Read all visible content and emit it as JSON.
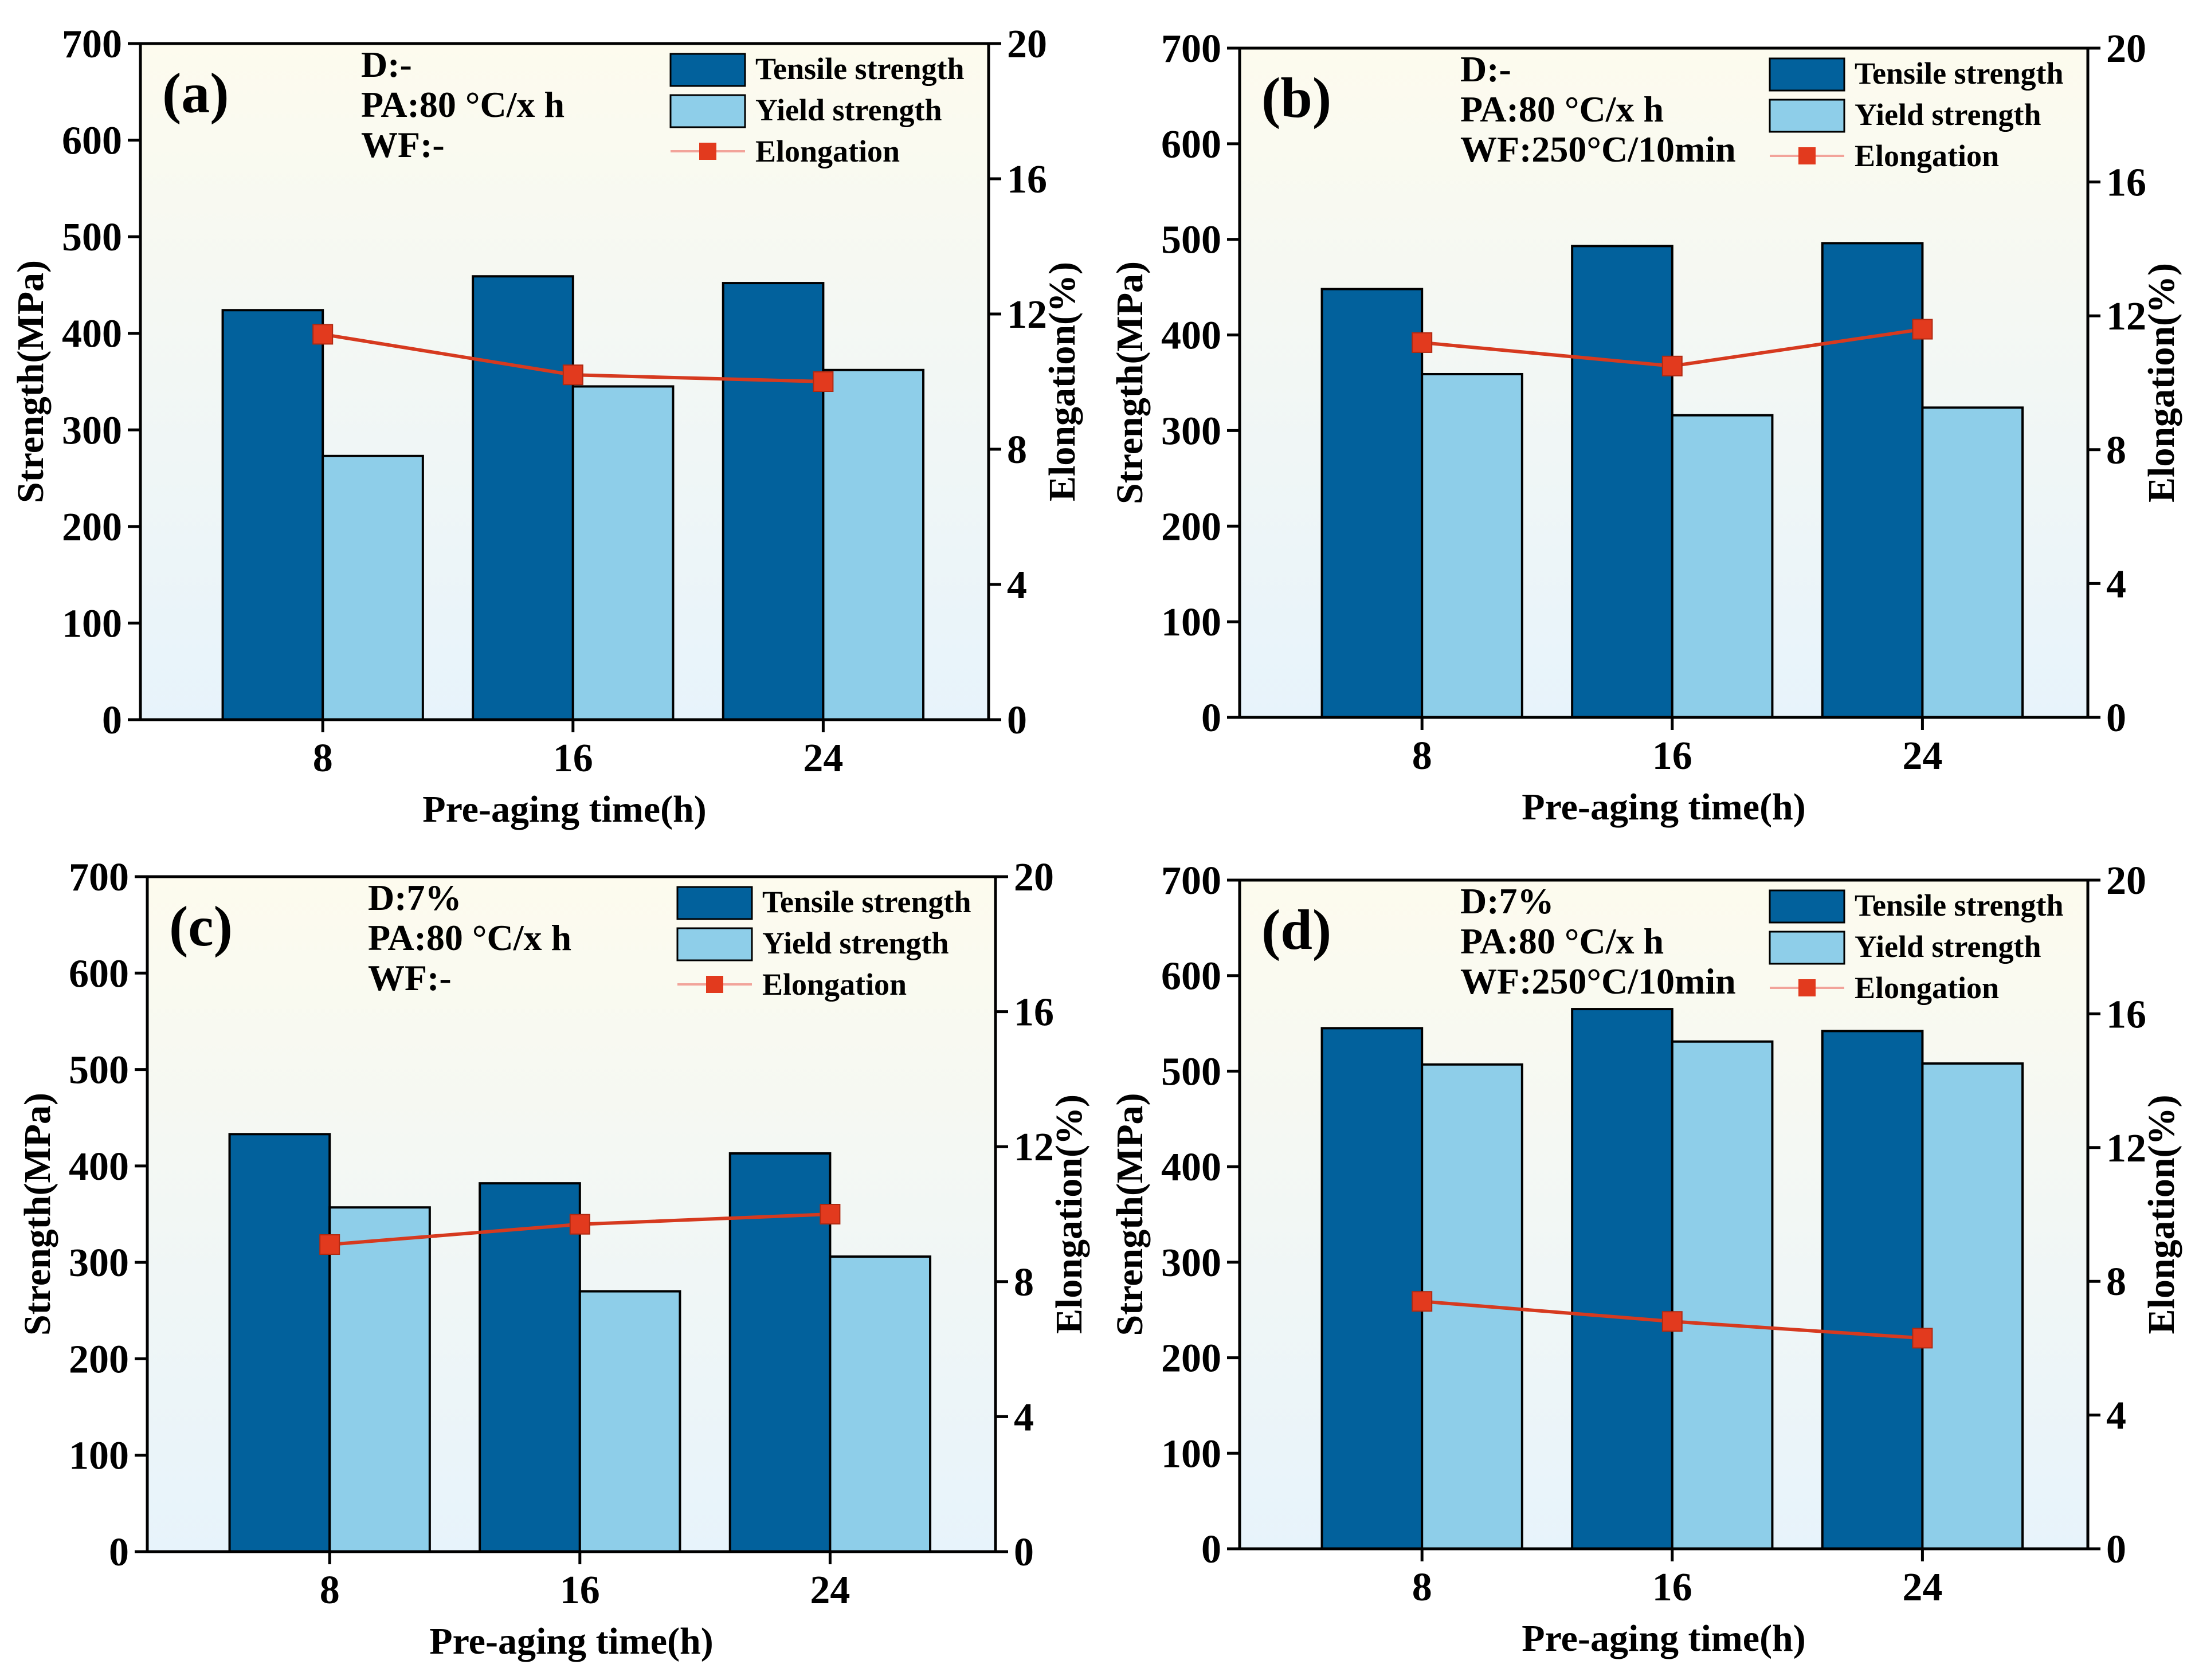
{
  "chart_data": [
    {
      "panel": "(a)",
      "type": "bar",
      "conditions": [
        "D:-",
        "PA:80 °C/x h",
        "WF:-"
      ],
      "xlabel": "Pre-aging time(h)",
      "ylabel": "Strength(MPa)",
      "y2label": "Elongation(%)",
      "categories": [
        "8",
        "16",
        "24"
      ],
      "ylim": [
        0,
        700
      ],
      "y2lim": [
        0,
        20
      ],
      "yticks": [
        "0",
        "100",
        "200",
        "300",
        "400",
        "500",
        "600",
        "700"
      ],
      "y2ticks": [
        "0",
        "4",
        "8",
        "12",
        "16",
        "20"
      ],
      "series": [
        {
          "name": "Tensile strength",
          "kind": "bar",
          "axis": "left",
          "values": [
            424,
            459,
            452
          ]
        },
        {
          "name": "Yield strength",
          "kind": "bar",
          "axis": "left",
          "values": [
            273,
            345,
            362
          ]
        },
        {
          "name": "Elongation",
          "kind": "line",
          "axis": "right",
          "values": [
            11.4,
            10.2,
            10.0
          ]
        }
      ]
    },
    {
      "panel": "(b)",
      "type": "bar",
      "conditions": [
        "D:-",
        "PA:80 °C/x h",
        "WF:250°C/10min"
      ],
      "xlabel": "Pre-aging time(h)",
      "ylabel": "Strength(MPa)",
      "y2label": "Elongation(%)",
      "categories": [
        "8",
        "16",
        "24"
      ],
      "ylim": [
        0,
        700
      ],
      "y2lim": [
        0,
        20
      ],
      "yticks": [
        "0",
        "100",
        "200",
        "300",
        "400",
        "500",
        "600",
        "700"
      ],
      "y2ticks": [
        "0",
        "4",
        "8",
        "12",
        "16",
        "20"
      ],
      "series": [
        {
          "name": "Tensile strength",
          "kind": "bar",
          "axis": "left",
          "values": [
            448,
            493,
            496
          ]
        },
        {
          "name": "Yield strength",
          "kind": "bar",
          "axis": "left",
          "values": [
            359,
            316,
            324
          ]
        },
        {
          "name": "Elongation",
          "kind": "line",
          "axis": "right",
          "values": [
            11.2,
            10.5,
            11.6
          ]
        }
      ]
    },
    {
      "panel": "(c)",
      "type": "bar",
      "conditions": [
        "D:7%",
        "PA:80 °C/x h",
        "WF:-"
      ],
      "xlabel": "Pre-aging time(h)",
      "ylabel": "Strength(MPa)",
      "y2label": "Elongation(%)",
      "categories": [
        "8",
        "16",
        "24"
      ],
      "ylim": [
        0,
        700
      ],
      "y2lim": [
        0,
        20
      ],
      "yticks": [
        "0",
        "100",
        "200",
        "300",
        "400",
        "500",
        "600",
        "700"
      ],
      "y2ticks": [
        "0",
        "4",
        "8",
        "12",
        "16",
        "20"
      ],
      "series": [
        {
          "name": "Tensile strength",
          "kind": "bar",
          "axis": "left",
          "values": [
            433,
            382,
            413
          ]
        },
        {
          "name": "Yield strength",
          "kind": "bar",
          "axis": "left",
          "values": [
            357,
            270,
            306
          ]
        },
        {
          "name": "Elongation",
          "kind": "line",
          "axis": "right",
          "values": [
            9.1,
            9.7,
            10.0
          ]
        }
      ]
    },
    {
      "panel": "(d)",
      "type": "bar",
      "conditions": [
        "D:7%",
        "PA:80 °C/x h",
        "WF:250°C/10min"
      ],
      "xlabel": "Pre-aging time(h)",
      "ylabel": "Strength(MPa)",
      "y2label": "Elongation(%)",
      "categories": [
        "8",
        "16",
        "24"
      ],
      "ylim": [
        0,
        700
      ],
      "y2lim": [
        0,
        20
      ],
      "yticks": [
        "0",
        "100",
        "200",
        "300",
        "400",
        "500",
        "600",
        "700"
      ],
      "y2ticks": [
        "0",
        "4",
        "8",
        "12",
        "16",
        "20"
      ],
      "series": [
        {
          "name": "Tensile strength",
          "kind": "bar",
          "axis": "left",
          "values": [
            545,
            565,
            542
          ]
        },
        {
          "name": "Yield strength",
          "kind": "bar",
          "axis": "left",
          "values": [
            507,
            531,
            508
          ]
        },
        {
          "name": "Elongation",
          "kind": "line",
          "axis": "right",
          "values": [
            7.4,
            6.8,
            6.3
          ]
        }
      ]
    }
  ],
  "colors": {
    "tensile": "#02619c",
    "yield": "#8ecee9",
    "elongation_marker": "#e23a1e",
    "elongation_line": "#d63a1f",
    "legend_line": "#f2a39a",
    "plot_bg_top": "#fdfbee",
    "plot_bg_bottom": "#e7f3fb"
  }
}
